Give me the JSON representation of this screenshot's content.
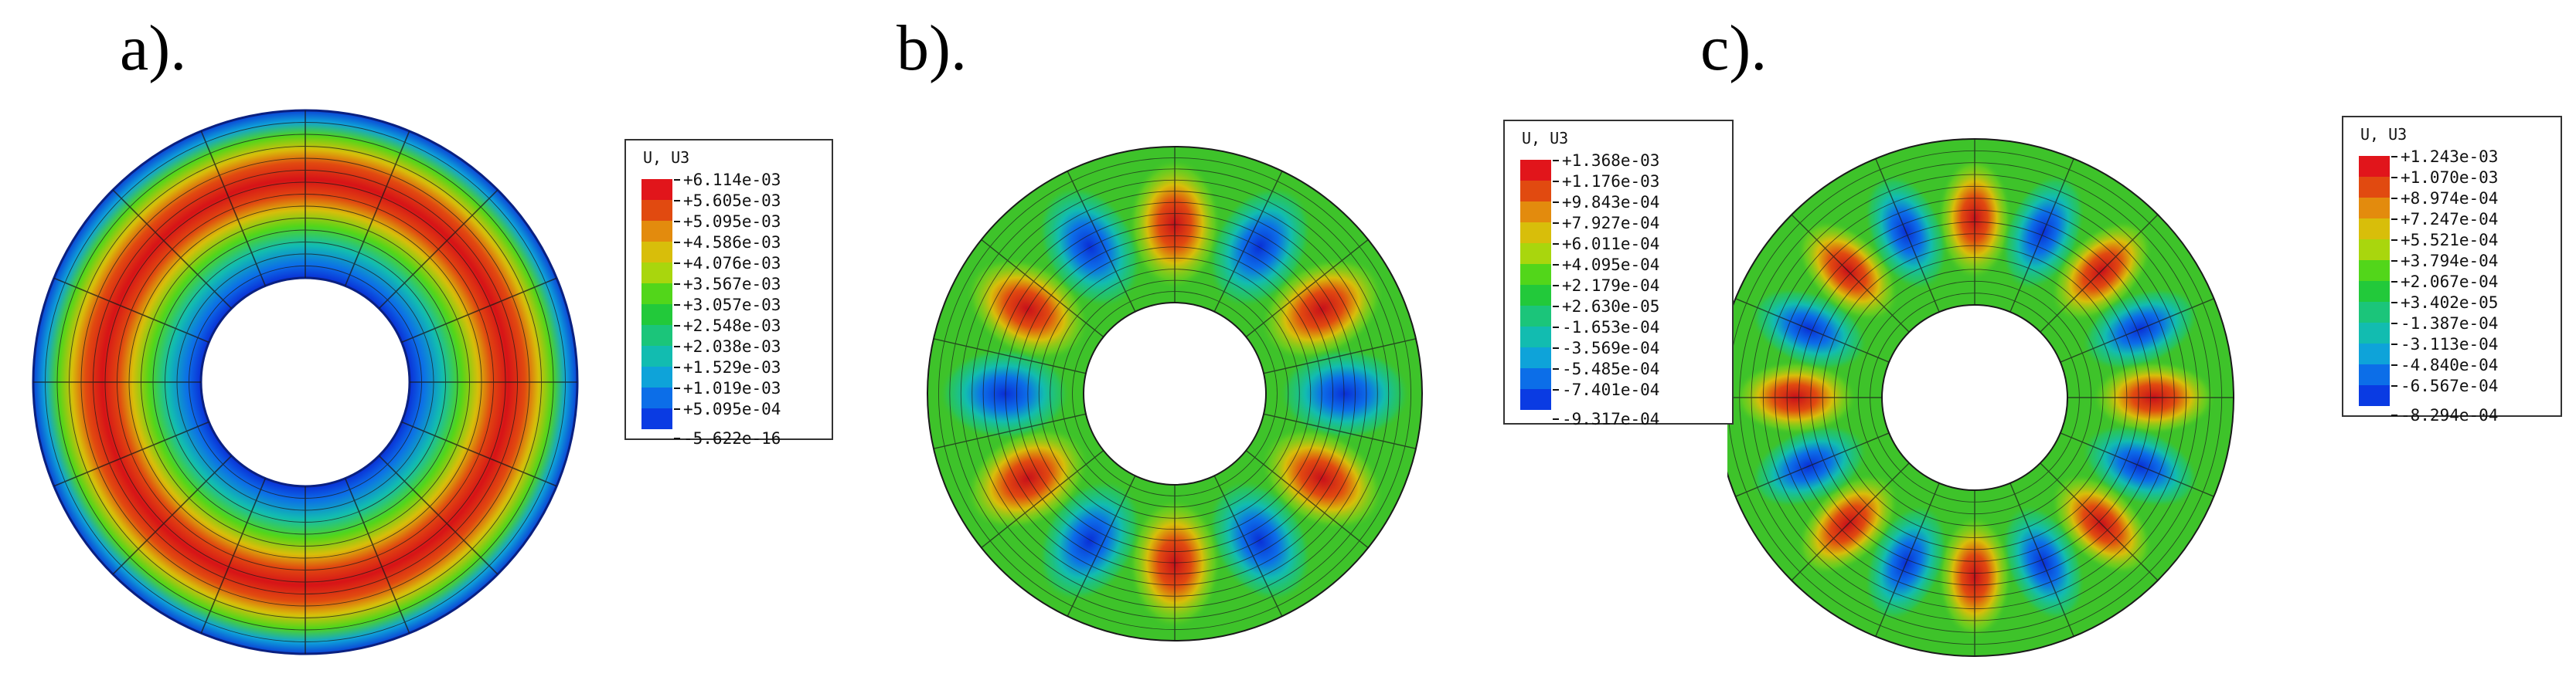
{
  "panels": [
    {
      "label": "a).",
      "legend_title": "U, U3",
      "legend_values": [
        "+6.114e-03",
        "+5.605e-03",
        "+5.095e-03",
        "+4.586e-03",
        "+4.076e-03",
        "+3.567e-03",
        "+3.057e-03",
        "+2.548e-03",
        "+2.038e-03",
        "+1.529e-03",
        "+1.019e-03",
        "+5.095e-04",
        "-5.622e-16"
      ],
      "legend_colors": [
        "#e1151b",
        "#e14a10",
        "#e38b0d",
        "#d8be0a",
        "#a9d60d",
        "#52d61a",
        "#22c93a",
        "#1bc57a",
        "#12bcb0",
        "#0ea3d9",
        "#0c6ee8",
        "#0a3be3"
      ]
    },
    {
      "label": "b).",
      "legend_title": "U, U3",
      "legend_values": [
        "+1.368e-03",
        "+1.176e-03",
        "+9.843e-04",
        "+7.927e-04",
        "+6.011e-04",
        "+4.095e-04",
        "+2.179e-04",
        "+2.630e-05",
        "-1.653e-04",
        "-3.569e-04",
        "-5.485e-04",
        "-7.401e-04",
        "-9.317e-04"
      ],
      "legend_colors": [
        "#e1151b",
        "#e14a10",
        "#e38b0d",
        "#d8be0a",
        "#a9d60d",
        "#52d61a",
        "#22c93a",
        "#1bc57a",
        "#12bcb0",
        "#0ea3d9",
        "#0c6ee8",
        "#0a3be3"
      ]
    },
    {
      "label": "c).",
      "legend_title": "U, U3",
      "legend_values": [
        "+1.243e-03",
        "+1.070e-03",
        "+8.974e-04",
        "+7.247e-04",
        "+5.521e-04",
        "+3.794e-04",
        "+2.067e-04",
        "+3.402e-05",
        "-1.387e-04",
        "-3.113e-04",
        "-4.840e-04",
        "-6.567e-04",
        "-8.294e-04"
      ],
      "legend_colors": [
        "#e1151b",
        "#e14a10",
        "#e38b0d",
        "#d8be0a",
        "#a9d60d",
        "#52d61a",
        "#22c93a",
        "#1bc57a",
        "#12bcb0",
        "#0ea3d9",
        "#0c6ee8",
        "#0a3be3"
      ]
    }
  ]
}
